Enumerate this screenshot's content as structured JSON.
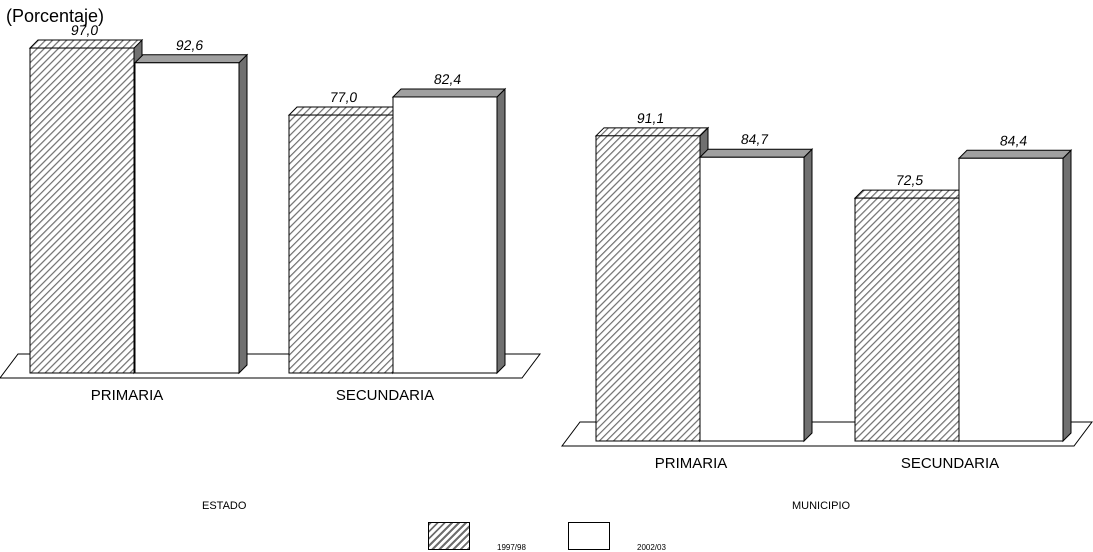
{
  "subtitle": "(Porcentaje)",
  "colors": {
    "hatch": "#6e6e6e",
    "bar_plain": "#ffffff",
    "side": "#707070",
    "top": "#a0a0a0"
  },
  "legend": [
    {
      "name": "1997/98",
      "pattern": "hatched"
    },
    {
      "name": "2002/03",
      "pattern": "plain"
    }
  ],
  "chart_data": [
    {
      "type": "bar",
      "caption": "ESTADO",
      "categories": [
        "PRIMARIA",
        "SECUNDARIA"
      ],
      "series": [
        {
          "name": "1997/98",
          "values": [
            97.0,
            77.0
          ],
          "labels": [
            "97,0",
            "77,0"
          ]
        },
        {
          "name": "2002/03",
          "values": [
            92.6,
            82.4
          ],
          "labels": [
            "92,6",
            "82,4"
          ]
        }
      ],
      "ylim": [
        0,
        100
      ]
    },
    {
      "type": "bar",
      "caption": "MUNICIPIO",
      "categories": [
        "PRIMARIA",
        "SECUNDARIA"
      ],
      "series": [
        {
          "name": "1997/98",
          "values": [
            91.1,
            72.5
          ],
          "labels": [
            "91,1",
            "72,5"
          ]
        },
        {
          "name": "2002/03",
          "values": [
            84.7,
            84.4
          ],
          "labels": [
            "84,7",
            "84,4"
          ]
        }
      ],
      "ylim": [
        0,
        100
      ]
    }
  ]
}
